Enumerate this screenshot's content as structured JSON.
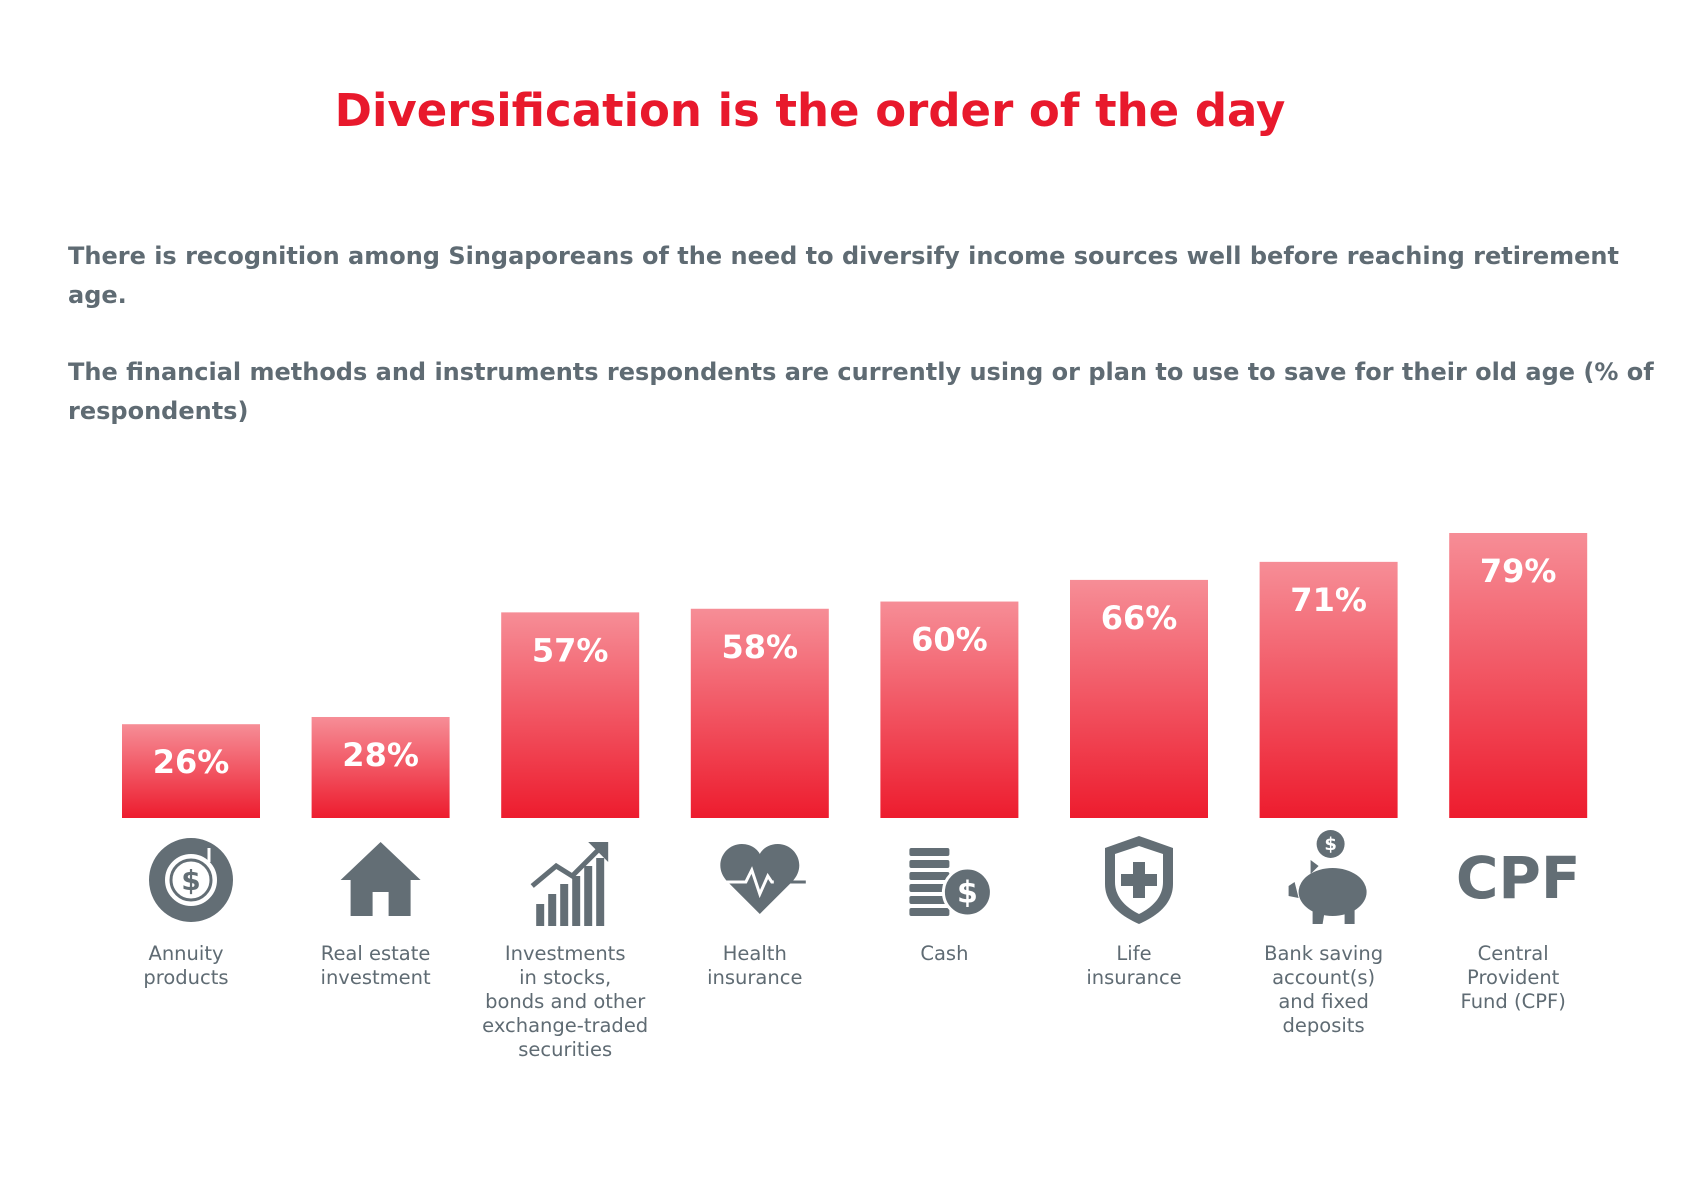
{
  "chart_data": {
    "type": "bar",
    "title": "Diversification is the order of the day",
    "subtitle": [
      "There is recognition among Singaporeans of the need to diversify income sources well before reaching retirement age.",
      "The financial methods and instruments respondents are currently using or plan to use to save for their old age (% of respondents)"
    ],
    "categories": [
      "Annuity\nproducts",
      "Real estate\ninvestment",
      "Investments\nin stocks,\nbonds and other\nexchange-traded\nsecurities",
      "Health\ninsurance",
      "Cash",
      "Life\ninsurance",
      "Bank saving\naccount(s)\nand fixed\ndeposits",
      "Central\nProvident\nFund (CPF)"
    ],
    "values": [
      26,
      28,
      57,
      58,
      60,
      66,
      71,
      79
    ],
    "value_labels": [
      "26%",
      "28%",
      "57%",
      "58%",
      "60%",
      "66%",
      "71%",
      "79%"
    ],
    "color": "#ed1c2e",
    "cpf_icon_text": "CPF"
  }
}
